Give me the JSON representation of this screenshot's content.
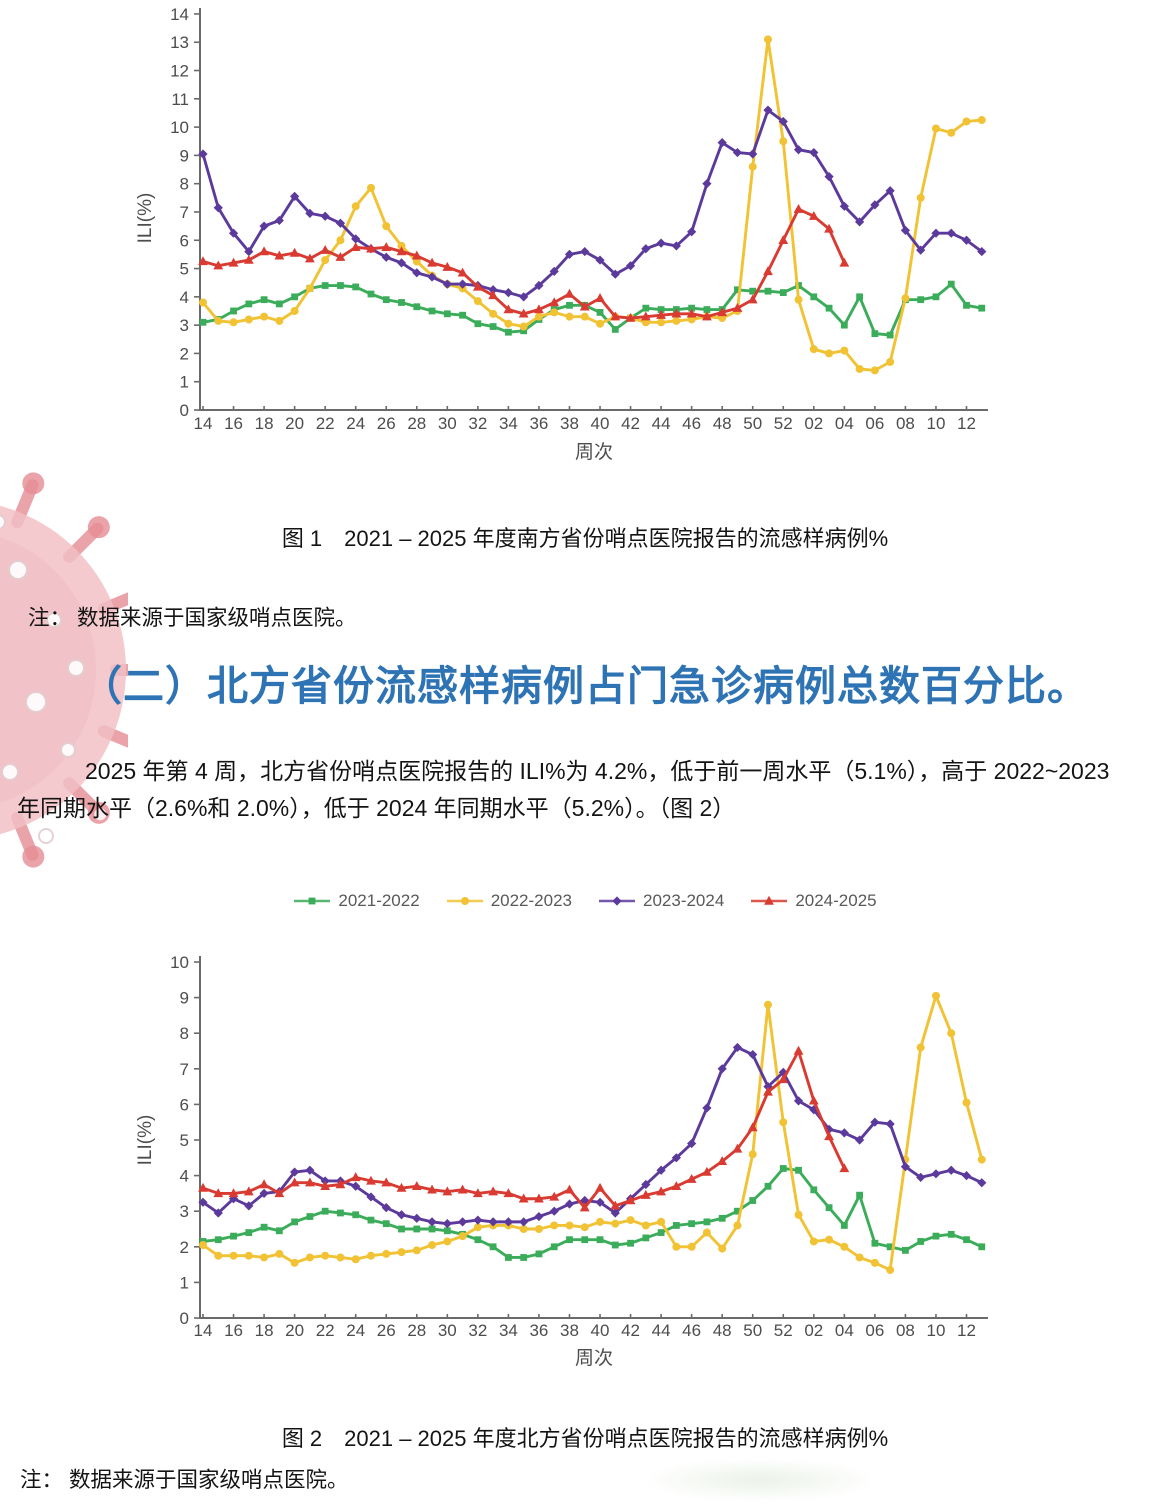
{
  "page": {
    "background": "#ffffff"
  },
  "decoration": {
    "virus_watermark_color_body": "#efb3b9",
    "virus_watermark_color_spikes": "#e0737d"
  },
  "colors": {
    "heading_blue": "#2E74B5",
    "axis": "#6a6a6a",
    "tick_text": "#4d4d4d",
    "legend_text": "#595959",
    "series_green": "#3BAC5A",
    "series_yellow": "#F1C233",
    "series_purple": "#5C3A9C",
    "series_red": "#D93A31"
  },
  "figure1": {
    "caption": "图 1　2021 – 2025 年度南方省份哨点医院报告的流感样病例%",
    "note": "注： 数据来源于国家级哨点医院。"
  },
  "section": {
    "heading": "（二）北方省份流感样病例占门急诊病例总数百分比。",
    "paragraph_line1": "2025 年第 4 周，北方省份哨点医院报告的 ILI%为 4.2%，低于前一周水平（5.1%），高于 2022~2023",
    "paragraph_line2": "年同期水平（2.6%和 2.0%），低于 2024 年同期水平（5.2%）。（图 2）"
  },
  "figure2": {
    "caption": "图 2　2021 – 2025 年度北方省份哨点医院报告的流感样病例%",
    "note": "注： 数据来源于国家级哨点医院。"
  },
  "legend": {
    "items": [
      {
        "label": "2021-2022",
        "color": "#3BAC5A",
        "marker": "square"
      },
      {
        "label": "2022-2023",
        "color": "#F1C233",
        "marker": "circle"
      },
      {
        "label": "2023-2024",
        "color": "#5C3A9C",
        "marker": "diamond"
      },
      {
        "label": "2024-2025",
        "color": "#D93A31",
        "marker": "triangle"
      }
    ]
  },
  "chart_data": [
    {
      "type": "line",
      "title": "南方省份哨点医院报告的流感样病例%",
      "xlabel": "周次",
      "ylabel": "ILI(%)",
      "ylim": [
        0,
        14
      ],
      "grid": false,
      "weeks": [
        "14",
        "15",
        "16",
        "17",
        "18",
        "19",
        "20",
        "21",
        "22",
        "23",
        "24",
        "25",
        "26",
        "27",
        "28",
        "29",
        "30",
        "31",
        "32",
        "33",
        "34",
        "35",
        "36",
        "37",
        "38",
        "39",
        "40",
        "41",
        "42",
        "43",
        "44",
        "45",
        "46",
        "47",
        "48",
        "49",
        "50",
        "51",
        "52",
        "01",
        "02",
        "03",
        "04",
        "05",
        "06",
        "07",
        "08",
        "09",
        "10",
        "11",
        "12",
        "13"
      ],
      "series": [
        {
          "name": "2021-2022",
          "color": "#3BAC5A",
          "marker": "square",
          "values": [
            3.1,
            3.2,
            3.5,
            3.75,
            3.9,
            3.75,
            4.0,
            4.3,
            4.4,
            4.4,
            4.35,
            4.1,
            3.9,
            3.8,
            3.65,
            3.5,
            3.4,
            3.35,
            3.05,
            2.95,
            2.75,
            2.8,
            3.2,
            3.55,
            3.7,
            3.7,
            3.45,
            2.85,
            3.25,
            3.6,
            3.55,
            3.55,
            3.6,
            3.55,
            3.55,
            4.25,
            4.2,
            4.2,
            4.15,
            4.4,
            4.0,
            3.6,
            3.0,
            4.0,
            2.7,
            2.65,
            3.9,
            3.9,
            4.0,
            4.45,
            3.7,
            3.6
          ]
        },
        {
          "name": "2022-2023",
          "color": "#F1C233",
          "marker": "circle",
          "values": [
            3.8,
            3.15,
            3.1,
            3.2,
            3.3,
            3.15,
            3.5,
            4.3,
            5.3,
            6.0,
            7.2,
            7.85,
            6.5,
            5.8,
            5.25,
            4.75,
            4.45,
            4.3,
            3.85,
            3.4,
            3.05,
            2.95,
            3.3,
            3.45,
            3.3,
            3.3,
            3.05,
            3.3,
            3.25,
            3.1,
            3.1,
            3.15,
            3.2,
            3.3,
            3.25,
            3.5,
            8.6,
            13.1,
            9.5,
            3.9,
            2.15,
            2.0,
            2.1,
            1.45,
            1.4,
            1.7,
            3.95,
            7.5,
            9.95,
            9.8,
            10.2,
            10.25
          ]
        },
        {
          "name": "2023-2024",
          "color": "#5C3A9C",
          "marker": "diamond",
          "values": [
            9.05,
            7.15,
            6.25,
            5.6,
            6.5,
            6.7,
            7.55,
            6.95,
            6.85,
            6.6,
            6.05,
            5.7,
            5.4,
            5.2,
            4.85,
            4.7,
            4.45,
            4.45,
            4.4,
            4.25,
            4.15,
            4.0,
            4.4,
            4.9,
            5.5,
            5.6,
            5.3,
            4.8,
            5.1,
            5.7,
            5.9,
            5.8,
            6.3,
            8.0,
            9.45,
            9.1,
            9.05,
            10.6,
            10.2,
            9.2,
            9.1,
            8.25,
            7.2,
            6.65,
            7.25,
            7.75,
            6.35,
            5.65,
            6.25,
            6.25,
            6.0,
            5.6
          ]
        },
        {
          "name": "2024-2025",
          "color": "#D93A31",
          "marker": "triangle",
          "values": [
            5.25,
            5.1,
            5.2,
            5.3,
            5.6,
            5.45,
            5.55,
            5.35,
            5.65,
            5.4,
            5.75,
            5.7,
            5.75,
            5.6,
            5.45,
            5.2,
            5.05,
            4.85,
            4.35,
            4.05,
            3.55,
            3.4,
            3.55,
            3.8,
            4.1,
            3.65,
            3.95,
            3.3,
            3.25,
            3.3,
            3.35,
            3.4,
            3.4,
            3.3,
            3.45,
            3.6,
            3.9,
            4.9,
            6.0,
            7.1,
            6.85,
            6.4,
            5.2,
            null,
            null,
            null,
            null,
            null,
            null,
            null,
            null,
            null
          ]
        }
      ]
    },
    {
      "type": "line",
      "title": "北方省份哨点医院报告的流感样病例%",
      "xlabel": "周次",
      "ylabel": "ILI(%)",
      "ylim": [
        0,
        10
      ],
      "grid": false,
      "weeks": [
        "14",
        "15",
        "16",
        "17",
        "18",
        "19",
        "20",
        "21",
        "22",
        "23",
        "24",
        "25",
        "26",
        "27",
        "28",
        "29",
        "30",
        "31",
        "32",
        "33",
        "34",
        "35",
        "36",
        "37",
        "38",
        "39",
        "40",
        "41",
        "42",
        "43",
        "44",
        "45",
        "46",
        "47",
        "48",
        "49",
        "50",
        "51",
        "52",
        "01",
        "02",
        "03",
        "04",
        "05",
        "06",
        "07",
        "08",
        "09",
        "10",
        "11",
        "12",
        "13"
      ],
      "series": [
        {
          "name": "2021-2022",
          "color": "#3BAC5A",
          "marker": "square",
          "values": [
            2.15,
            2.2,
            2.3,
            2.4,
            2.55,
            2.45,
            2.7,
            2.85,
            3.0,
            2.95,
            2.9,
            2.75,
            2.65,
            2.5,
            2.5,
            2.5,
            2.45,
            2.35,
            2.2,
            2.0,
            1.7,
            1.7,
            1.8,
            2.0,
            2.2,
            2.2,
            2.2,
            2.05,
            2.1,
            2.25,
            2.4,
            2.6,
            2.65,
            2.7,
            2.8,
            3.0,
            3.3,
            3.7,
            4.2,
            4.15,
            3.6,
            3.1,
            2.6,
            3.45,
            2.1,
            2.0,
            1.9,
            2.15,
            2.3,
            2.35,
            2.2,
            2.0
          ]
        },
        {
          "name": "2022-2023",
          "color": "#F1C233",
          "marker": "circle",
          "values": [
            2.05,
            1.75,
            1.75,
            1.75,
            1.7,
            1.8,
            1.55,
            1.7,
            1.75,
            1.7,
            1.65,
            1.75,
            1.8,
            1.85,
            1.9,
            2.05,
            2.15,
            2.3,
            2.55,
            2.6,
            2.6,
            2.5,
            2.5,
            2.6,
            2.6,
            2.55,
            2.7,
            2.65,
            2.75,
            2.6,
            2.7,
            2.0,
            2.0,
            2.4,
            1.95,
            2.6,
            4.6,
            8.8,
            5.5,
            2.9,
            2.15,
            2.2,
            2.0,
            1.7,
            1.55,
            1.35,
            4.45,
            7.6,
            9.05,
            8.0,
            6.05,
            4.45
          ]
        },
        {
          "name": "2023-2024",
          "color": "#5C3A9C",
          "marker": "diamond",
          "values": [
            3.25,
            2.95,
            3.35,
            3.15,
            3.5,
            3.55,
            4.1,
            4.15,
            3.85,
            3.85,
            3.7,
            3.4,
            3.1,
            2.9,
            2.8,
            2.7,
            2.65,
            2.7,
            2.75,
            2.7,
            2.7,
            2.7,
            2.85,
            3.0,
            3.2,
            3.3,
            3.25,
            2.95,
            3.35,
            3.75,
            4.15,
            4.5,
            4.9,
            5.9,
            7.0,
            7.6,
            7.4,
            6.5,
            6.9,
            6.1,
            5.85,
            5.3,
            5.2,
            5.0,
            5.5,
            5.45,
            4.25,
            3.95,
            4.05,
            4.15,
            4.0,
            3.8
          ]
        },
        {
          "name": "2024-2025",
          "color": "#D93A31",
          "marker": "triangle",
          "values": [
            3.65,
            3.5,
            3.5,
            3.55,
            3.75,
            3.5,
            3.8,
            3.8,
            3.7,
            3.75,
            3.95,
            3.85,
            3.8,
            3.65,
            3.7,
            3.6,
            3.55,
            3.6,
            3.5,
            3.55,
            3.5,
            3.35,
            3.35,
            3.4,
            3.6,
            3.1,
            3.65,
            3.15,
            3.3,
            3.45,
            3.55,
            3.7,
            3.9,
            4.1,
            4.4,
            4.75,
            5.35,
            6.35,
            6.7,
            7.5,
            6.1,
            5.1,
            4.2,
            null,
            null,
            null,
            null,
            null,
            null,
            null,
            null,
            null
          ]
        }
      ]
    }
  ]
}
